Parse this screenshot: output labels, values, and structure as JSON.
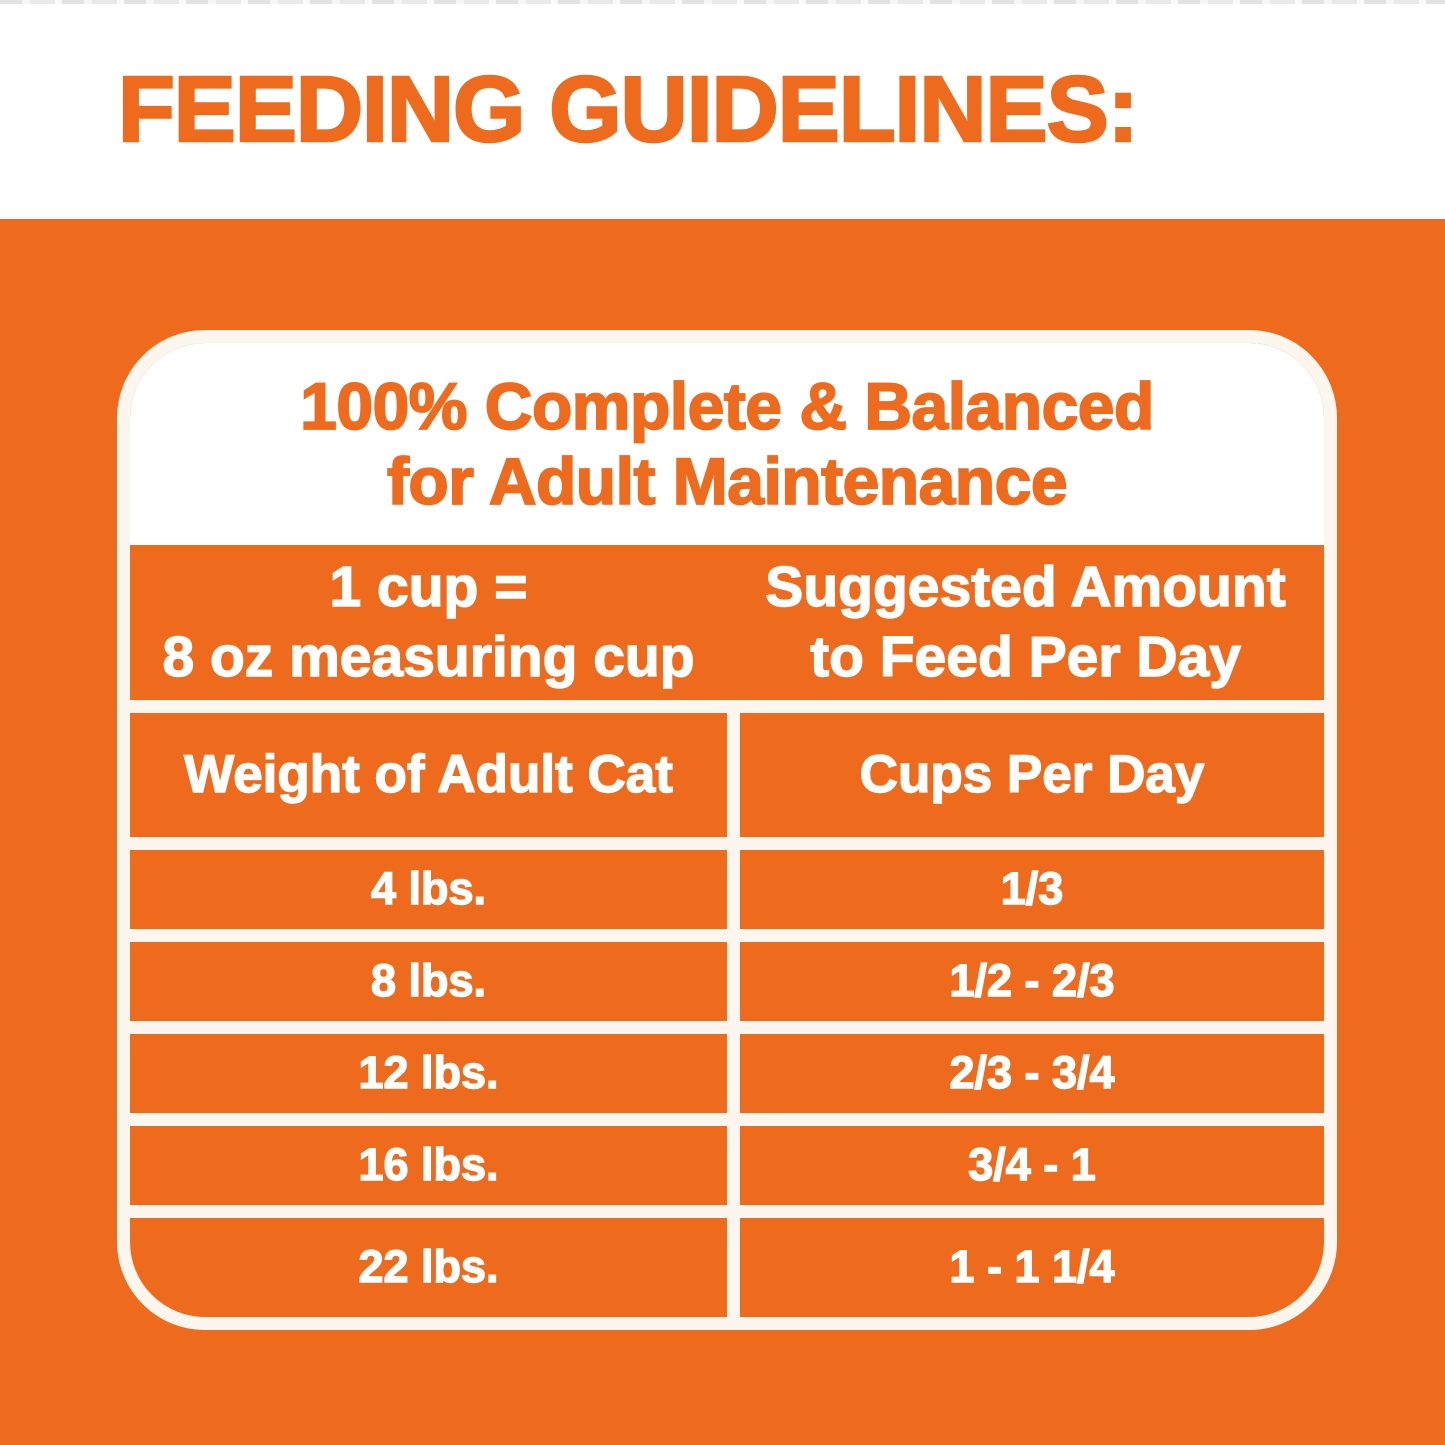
{
  "header": {
    "title": "FEEDING GUIDELINES:"
  },
  "card": {
    "heading": {
      "line1": "100% Complete & Balanced",
      "line2": "for Adult Maintenance"
    },
    "measure_note": {
      "line1": "1 cup =",
      "line2": "8 oz measuring cup"
    },
    "amount_note": {
      "line1": "Suggested Amount",
      "line2": "to Feed Per Day"
    },
    "columns": {
      "weight": "Weight of Adult Cat",
      "cups": "Cups Per Day"
    },
    "rows": [
      {
        "weight": "4 lbs.",
        "cups": "1/3"
      },
      {
        "weight": "8 lbs.",
        "cups": "1/2 - 2/3"
      },
      {
        "weight": "12 lbs.",
        "cups": "2/3 - 3/4"
      },
      {
        "weight": "16 lbs.",
        "cups": "3/4 - 1"
      },
      {
        "weight": "22 lbs.",
        "cups": "1 - 1 1/4"
      }
    ]
  },
  "colors": {
    "orange": "#ee6a1c",
    "grid_line": "#fbf6ee",
    "card_head_bg": "#ffffff",
    "table_text": "#ffffff"
  }
}
